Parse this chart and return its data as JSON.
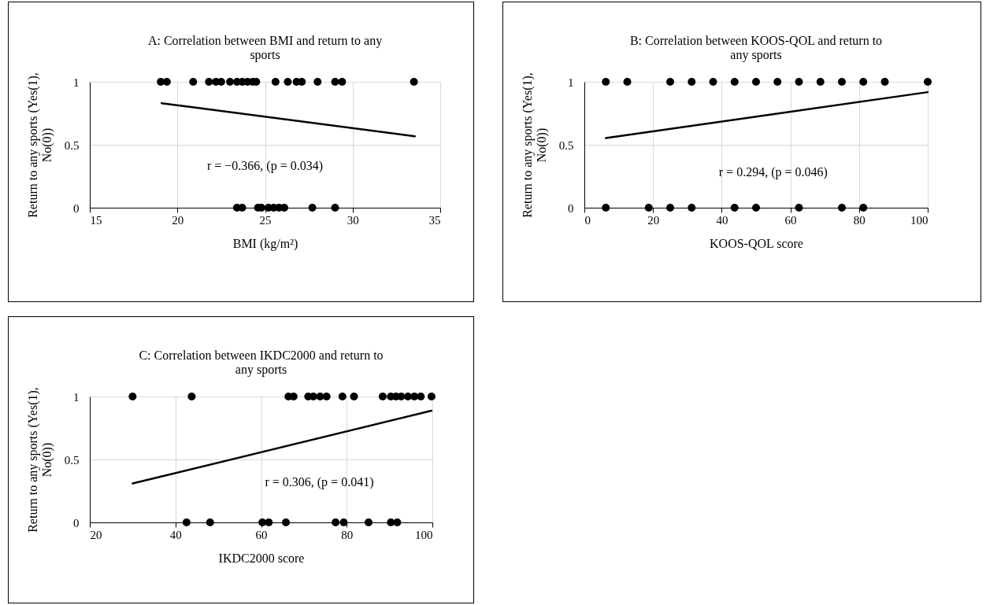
{
  "chart_data": [
    {
      "type": "scatter",
      "title": "A: Correlation between BMI and return to any sports",
      "xlabel": "BMI (kg/m²)",
      "ylabel": "Return to any sports (Yes(1), No(0))",
      "xlim": [
        15,
        35
      ],
      "xticks": [
        15,
        20,
        25,
        30,
        35
      ],
      "ylim": [
        0,
        1
      ],
      "yticks": [
        0,
        0.5,
        1
      ],
      "grid": true,
      "annotations": [
        "r = −0.366, (p = 0.034)"
      ],
      "series": [
        {
          "marker": "circle",
          "color": "#000000",
          "x": [
            19.05,
            19.4,
            20.9,
            21.8,
            22.2,
            22.5,
            23.0,
            23.4,
            23.7,
            24.0,
            24.3,
            24.5,
            25.6,
            26.3,
            26.8,
            27.1,
            28.0,
            29.0,
            29.4,
            33.5,
            23.4,
            23.7,
            24.6,
            24.8,
            25.2,
            25.5,
            25.8,
            26.1,
            27.7,
            29.0
          ],
          "values": [
            1,
            1,
            1,
            1,
            1,
            1,
            1,
            1,
            1,
            1,
            1,
            1,
            1,
            1,
            1,
            1,
            1,
            1,
            1,
            1,
            0,
            0,
            0,
            0,
            0,
            0,
            0,
            0,
            0,
            0
          ]
        },
        {
          "type": "line",
          "color": "#000000",
          "line_style": "solid",
          "x": [
            19.1,
            33.55
          ],
          "values": [
            0.83,
            0.567
          ]
        }
      ]
    },
    {
      "type": "scatter",
      "title": "B: Correlation between KOOS-QOL and return to any sports",
      "xlabel": "KOOS-QOL score",
      "ylabel": "Return to any sports (Yes(1), No(0))",
      "xlim": [
        0,
        100
      ],
      "xticks": [
        0,
        20,
        40,
        60,
        80,
        100
      ],
      "ylim": [
        0,
        1
      ],
      "yticks": [
        0,
        0.5,
        1
      ],
      "grid": true,
      "annotations": [
        "r = 0.294, (p = 0.046)"
      ],
      "series": [
        {
          "marker": "circle",
          "color": "#000000",
          "x": [
            6.25,
            12.5,
            25,
            31.25,
            37.5,
            43.75,
            50,
            56.25,
            62.5,
            68.75,
            75,
            81.25,
            87.5,
            100,
            6.25,
            18.75,
            25,
            31.25,
            43.75,
            50,
            62.5,
            75,
            81.25
          ],
          "values": [
            1,
            1,
            1,
            1,
            1,
            1,
            1,
            1,
            1,
            1,
            1,
            1,
            1,
            1,
            0,
            0,
            0,
            0,
            0,
            0,
            0,
            0,
            0
          ]
        },
        {
          "type": "line",
          "color": "#000000",
          "line_style": "solid",
          "x": [
            6.25,
            100
          ],
          "values": [
            0.553,
            0.918
          ]
        }
      ]
    },
    {
      "type": "scatter",
      "title": "C: Correlation between IKDC2000 and return to any sports",
      "xlabel": "IKDC2000 score",
      "ylabel": "Return to any sports (Yes(1), No(0))",
      "xlim": [
        20,
        100
      ],
      "xticks": [
        20,
        40,
        60,
        80,
        100
      ],
      "ylim": [
        0,
        1
      ],
      "yticks": [
        0,
        0.5,
        1
      ],
      "grid": true,
      "annotations": [
        "r = 0.306, (p = 0.041)"
      ],
      "series": [
        {
          "marker": "circle",
          "color": "#000000",
          "x": [
            30.0,
            43.8,
            66.4,
            67.6,
            71.0,
            72.2,
            73.8,
            75.3,
            79.0,
            81.7,
            88.4,
            90.3,
            91.5,
            92.7,
            94.3,
            95.8,
            97.3,
            99.8,
            42.6,
            48.1,
            60.3,
            61.8,
            65.8,
            77.4,
            79.3,
            85.1,
            90.3,
            91.8
          ],
          "values": [
            1,
            1,
            1,
            1,
            1,
            1,
            1,
            1,
            1,
            1,
            1,
            1,
            1,
            1,
            1,
            1,
            1,
            1,
            0,
            0,
            0,
            0,
            0,
            0,
            0,
            0,
            0,
            0
          ]
        },
        {
          "type": "line",
          "color": "#000000",
          "line_style": "solid",
          "x": [
            30.0,
            99.8
          ],
          "values": [
            0.309,
            0.887
          ]
        }
      ]
    }
  ]
}
